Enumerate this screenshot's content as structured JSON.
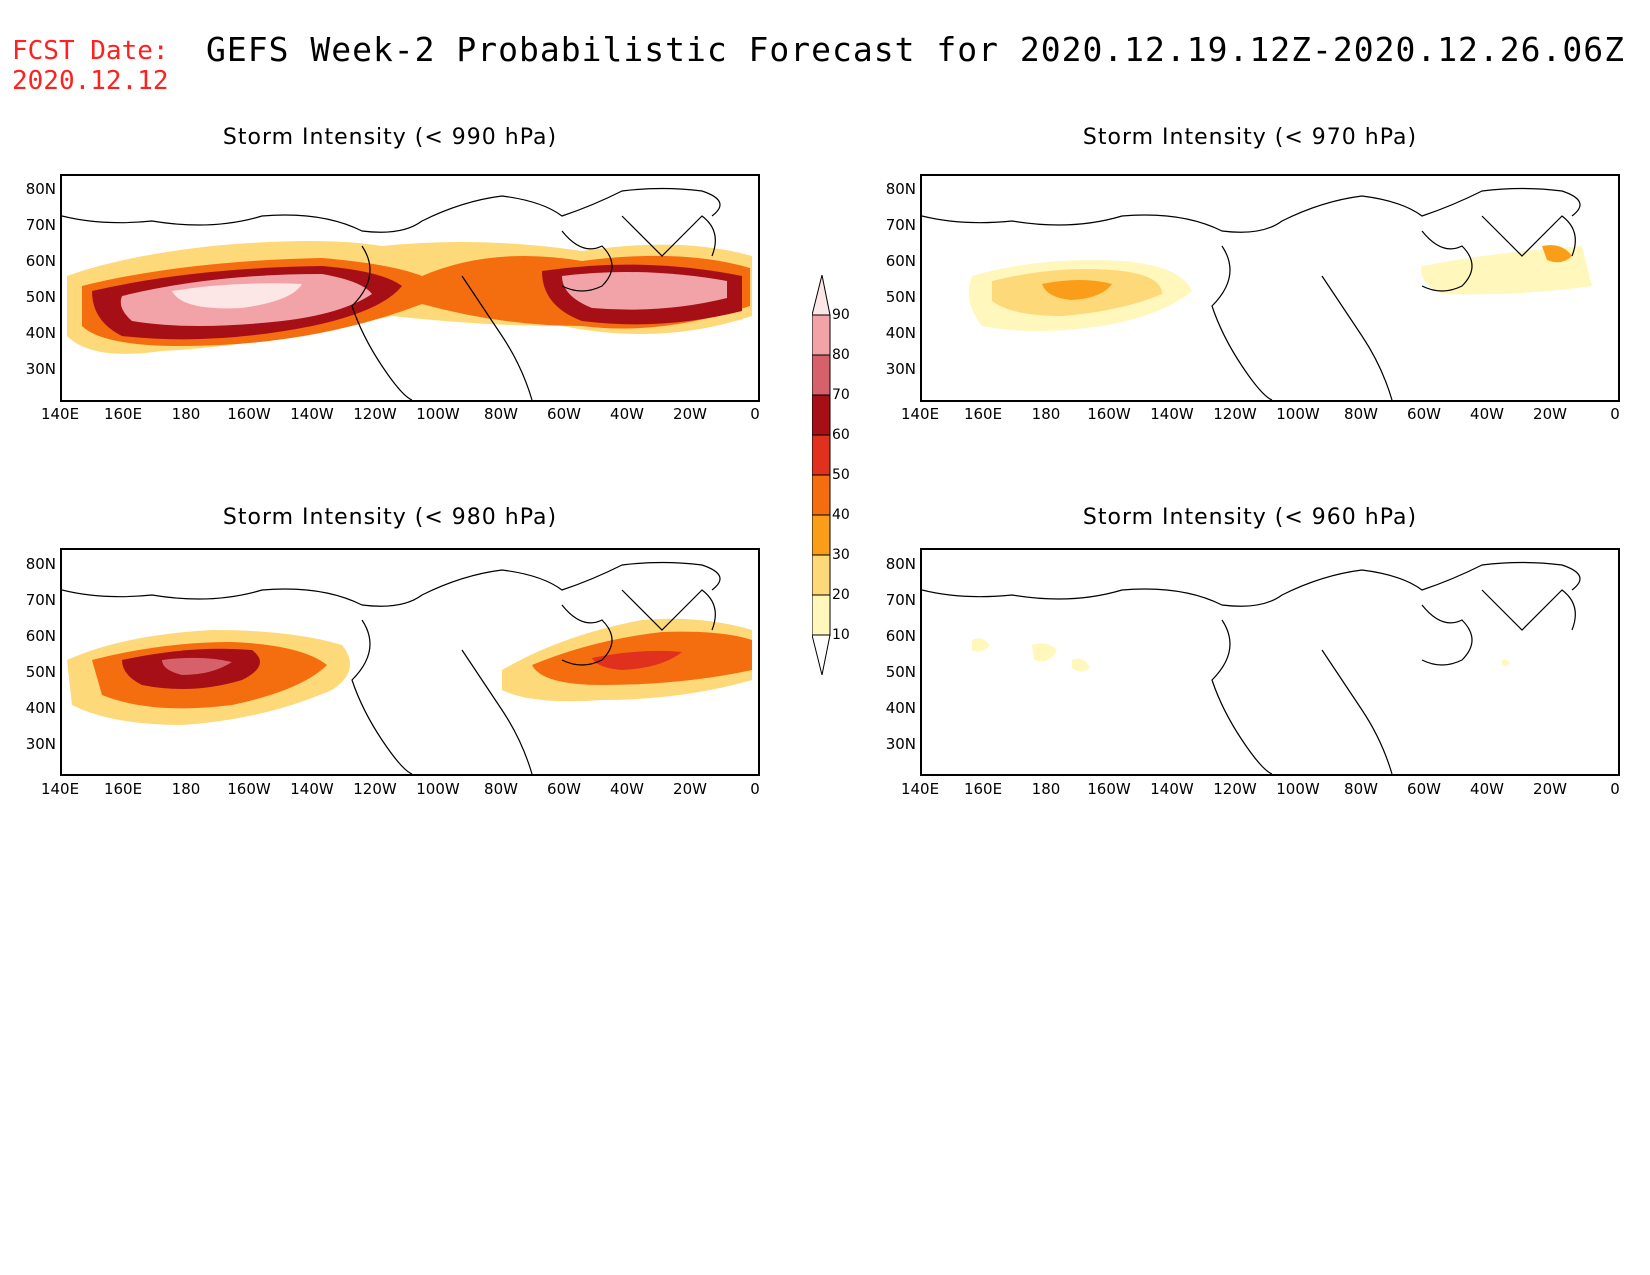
{
  "header": {
    "fcst_label": "FCST Date:",
    "fcst_date": "2020.12.12",
    "title": "GEFS Week-2 Probabilistic Forecast for 2020.12.19.12Z-2020.12.26.06Z"
  },
  "axes": {
    "lat_labels": [
      "80N",
      "70N",
      "60N",
      "50N",
      "40N",
      "30N"
    ],
    "lon_labels": [
      "140E",
      "160E",
      "180",
      "160W",
      "140W",
      "120W",
      "100W",
      "80W",
      "60W",
      "40W",
      "20W",
      "0"
    ]
  },
  "panels": [
    {
      "title": "Storm Intensity (< 990 hPa)",
      "intensity": "high"
    },
    {
      "title": "Storm Intensity (< 970 hPa)",
      "intensity": "low"
    },
    {
      "title": "Storm Intensity (< 980 hPa)",
      "intensity": "medium"
    },
    {
      "title": "Storm Intensity (< 960 hPa)",
      "intensity": "minimal"
    }
  ],
  "colorbar": {
    "levels": [
      "90",
      "80",
      "70",
      "60",
      "50",
      "40",
      "30",
      "20",
      "10"
    ],
    "colors": [
      "#fde6e6",
      "#f2a3a8",
      "#d6616b",
      "#a50f15",
      "#e0301e",
      "#f46d0e",
      "#fa9e1a",
      "#fdd97a",
      "#fff7bc"
    ]
  }
}
